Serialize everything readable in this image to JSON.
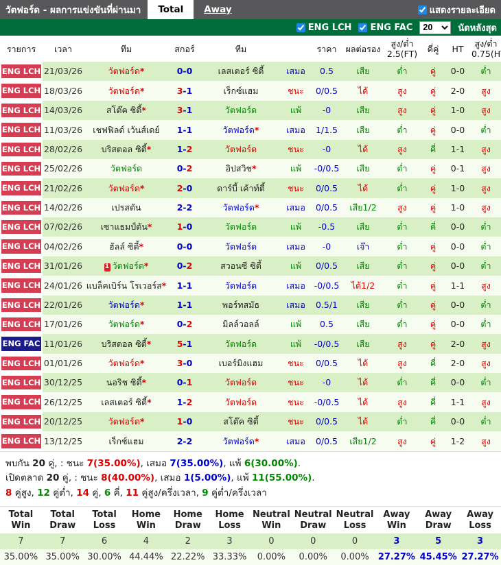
{
  "titlebar": {
    "title": "วัตฟอร์ด - ผลการแข่งขันที่ผ่านมา",
    "tabs": [
      {
        "label": "Total",
        "active": true
      },
      {
        "label": "Away",
        "active": false
      }
    ],
    "detail_checkbox_label": "แสดงรายละเอียด",
    "detail_checkbox_checked": true
  },
  "filterbar": {
    "leagues": [
      {
        "label": "ENG LCH",
        "checked": true
      },
      {
        "label": "ENG FAC",
        "checked": true
      }
    ],
    "match_count": "20",
    "suffix_label": "นัดหลังสุด"
  },
  "colors": {
    "red": "#dd0000",
    "blue": "#0000cc",
    "green": "#008800",
    "black": "#222222",
    "badge_lch": "#d43d52",
    "badge_fac": "#1a1c8e",
    "row_green": "#d9efc6",
    "row_pale": "#f7fcf0",
    "bar_gray": "#58585a",
    "bar_green": "#006e3a"
  },
  "table": {
    "headers": [
      "รายการ",
      "เวลา",
      "ทีม",
      "สกอร์",
      "ทีม",
      "",
      "ราคา",
      "ผลต่อรอง",
      "สูง/ต่ำ 2.5(FT)",
      "คี่คู่",
      "HT",
      "สูง/ต่ำ 0.75(HT)"
    ],
    "rows": [
      {
        "league": "ENG LCH",
        "league_style": "lch",
        "date": "21/03/26",
        "home": "วัตฟอร์ด",
        "home_star": true,
        "home_color": "red",
        "red_card": "",
        "away": "เลสเตอร์ ซิตี้",
        "away_star": false,
        "away_color": "black",
        "score_home": "0",
        "score_away": "0",
        "score_home_color": "blue",
        "score_away_color": "blue",
        "result": "เสมอ",
        "result_color": "blue",
        "ratio": "0.5",
        "handicap": "เสีย",
        "handicap_color": "green",
        "ou_ft": "ต่ำ",
        "ou_ft_color": "green",
        "odd_even": "คู่",
        "odd_even_color": "red",
        "ht": "0-0",
        "ou_ht": "ต่ำ",
        "ou_ht_color": "green"
      },
      {
        "league": "ENG LCH",
        "league_style": "lch",
        "date": "18/03/26",
        "home": "วัตฟอร์ด",
        "home_star": true,
        "home_color": "red",
        "red_card": "",
        "away": "เร็กซ์แฮม",
        "away_star": false,
        "away_color": "black",
        "score_home": "3",
        "score_away": "1",
        "score_home_color": "red",
        "score_away_color": "blue",
        "result": "ชนะ",
        "result_color": "red",
        "ratio": "0/0.5",
        "handicap": "ได้",
        "handicap_color": "red",
        "ou_ft": "สูง",
        "ou_ft_color": "red",
        "odd_even": "คู่",
        "odd_even_color": "red",
        "ht": "2-0",
        "ou_ht": "สูง",
        "ou_ht_color": "red"
      },
      {
        "league": "ENG LCH",
        "league_style": "lch",
        "date": "14/03/26",
        "home": "สโต๊ค ซิตี้",
        "home_star": true,
        "home_color": "black",
        "red_card": "",
        "away": "วัตฟอร์ด",
        "away_star": false,
        "away_color": "green",
        "score_home": "3",
        "score_away": "1",
        "score_home_color": "red",
        "score_away_color": "blue",
        "result": "แพ้",
        "result_color": "green",
        "ratio": "-0",
        "handicap": "เสีย",
        "handicap_color": "green",
        "ou_ft": "สูง",
        "ou_ft_color": "red",
        "odd_even": "คู่",
        "odd_even_color": "red",
        "ht": "1-0",
        "ou_ht": "สูง",
        "ou_ht_color": "red"
      },
      {
        "league": "ENG LCH",
        "league_style": "lch",
        "date": "11/03/26",
        "home": "เชฟฟิลด์ เว้นส์เดย์",
        "home_star": false,
        "home_color": "black",
        "red_card": "",
        "away": "วัตฟอร์ด",
        "away_star": true,
        "away_color": "blue",
        "score_home": "1",
        "score_away": "1",
        "score_home_color": "blue",
        "score_away_color": "blue",
        "result": "เสมอ",
        "result_color": "blue",
        "ratio": "1/1.5",
        "handicap": "เสีย",
        "handicap_color": "green",
        "ou_ft": "ต่ำ",
        "ou_ft_color": "green",
        "odd_even": "คู่",
        "odd_even_color": "red",
        "ht": "0-0",
        "ou_ht": "ต่ำ",
        "ou_ht_color": "green"
      },
      {
        "league": "ENG LCH",
        "league_style": "lch",
        "date": "28/02/26",
        "home": "บริสตอล ซิตี้",
        "home_star": true,
        "home_color": "black",
        "red_card": "",
        "away": "วัตฟอร์ด",
        "away_star": false,
        "away_color": "red",
        "score_home": "1",
        "score_away": "2",
        "score_home_color": "blue",
        "score_away_color": "red",
        "result": "ชนะ",
        "result_color": "red",
        "ratio": "-0",
        "handicap": "ได้",
        "handicap_color": "red",
        "ou_ft": "สูง",
        "ou_ft_color": "red",
        "odd_even": "คี่",
        "odd_even_color": "green",
        "ht": "1-1",
        "ou_ht": "สูง",
        "ou_ht_color": "red"
      },
      {
        "league": "ENG LCH",
        "league_style": "lch",
        "date": "25/02/26",
        "home": "วัตฟอร์ด",
        "home_star": false,
        "home_color": "green",
        "red_card": "",
        "away": "อิปสวิช",
        "away_star": true,
        "away_color": "black",
        "score_home": "0",
        "score_away": "2",
        "score_home_color": "blue",
        "score_away_color": "red",
        "result": "แพ้",
        "result_color": "green",
        "ratio": "-0/0.5",
        "handicap": "เสีย",
        "handicap_color": "green",
        "ou_ft": "ต่ำ",
        "ou_ft_color": "green",
        "odd_even": "คู่",
        "odd_even_color": "red",
        "ht": "0-1",
        "ou_ht": "สูง",
        "ou_ht_color": "red"
      },
      {
        "league": "ENG LCH",
        "league_style": "lch",
        "date": "21/02/26",
        "home": "วัตฟอร์ด",
        "home_star": true,
        "home_color": "red",
        "red_card": "",
        "away": "ดาร์บี้ เค้าท์ตี้",
        "away_star": false,
        "away_color": "black",
        "score_home": "2",
        "score_away": "0",
        "score_home_color": "red",
        "score_away_color": "blue",
        "result": "ชนะ",
        "result_color": "red",
        "ratio": "0/0.5",
        "handicap": "ได้",
        "handicap_color": "red",
        "ou_ft": "ต่ำ",
        "ou_ft_color": "green",
        "odd_even": "คู่",
        "odd_even_color": "red",
        "ht": "1-0",
        "ou_ht": "สูง",
        "ou_ht_color": "red"
      },
      {
        "league": "ENG LCH",
        "league_style": "lch",
        "date": "14/02/26",
        "home": "เปรสตัน",
        "home_star": false,
        "home_color": "black",
        "red_card": "",
        "away": "วัตฟอร์ด",
        "away_star": true,
        "away_color": "blue",
        "score_home": "2",
        "score_away": "2",
        "score_home_color": "blue",
        "score_away_color": "blue",
        "result": "เสมอ",
        "result_color": "blue",
        "ratio": "0/0.5",
        "handicap": "เสีย1/2",
        "handicap_color": "green",
        "ou_ft": "สูง",
        "ou_ft_color": "red",
        "odd_even": "คู่",
        "odd_even_color": "red",
        "ht": "1-0",
        "ou_ht": "สูง",
        "ou_ht_color": "red"
      },
      {
        "league": "ENG LCH",
        "league_style": "lch",
        "date": "07/02/26",
        "home": "เซาแธมป์ตัน",
        "home_star": true,
        "home_color": "black",
        "red_card": "",
        "away": "วัตฟอร์ด",
        "away_star": false,
        "away_color": "green",
        "score_home": "1",
        "score_away": "0",
        "score_home_color": "red",
        "score_away_color": "blue",
        "result": "แพ้",
        "result_color": "green",
        "ratio": "-0.5",
        "handicap": "เสีย",
        "handicap_color": "green",
        "ou_ft": "ต่ำ",
        "ou_ft_color": "green",
        "odd_even": "คี่",
        "odd_even_color": "green",
        "ht": "0-0",
        "ou_ht": "ต่ำ",
        "ou_ht_color": "green"
      },
      {
        "league": "ENG LCH",
        "league_style": "lch",
        "date": "04/02/26",
        "home": "ฮัลล์ ซิตี้",
        "home_star": true,
        "home_color": "black",
        "red_card": "",
        "away": "วัตฟอร์ด",
        "away_star": false,
        "away_color": "blue",
        "score_home": "0",
        "score_away": "0",
        "score_home_color": "blue",
        "score_away_color": "blue",
        "result": "เสมอ",
        "result_color": "blue",
        "ratio": "-0",
        "handicap": "เจ๊า",
        "handicap_color": "blue",
        "ou_ft": "ต่ำ",
        "ou_ft_color": "green",
        "odd_even": "คู่",
        "odd_even_color": "red",
        "ht": "0-0",
        "ou_ht": "ต่ำ",
        "ou_ht_color": "green"
      },
      {
        "league": "ENG LCH",
        "league_style": "lch",
        "date": "31/01/26",
        "home": "วัตฟอร์ด",
        "home_star": true,
        "home_color": "green",
        "red_card": "1",
        "away": "สวอนซี ซิตี้",
        "away_star": false,
        "away_color": "black",
        "score_home": "0",
        "score_away": "2",
        "score_home_color": "blue",
        "score_away_color": "red",
        "result": "แพ้",
        "result_color": "green",
        "ratio": "0/0.5",
        "handicap": "เสีย",
        "handicap_color": "green",
        "ou_ft": "ต่ำ",
        "ou_ft_color": "green",
        "odd_even": "คู่",
        "odd_even_color": "red",
        "ht": "0-0",
        "ou_ht": "ต่ำ",
        "ou_ht_color": "green"
      },
      {
        "league": "ENG LCH",
        "league_style": "lch",
        "date": "24/01/26",
        "home": "แบล็คเบิร์น โรเวอร์ส",
        "home_star": true,
        "home_color": "black",
        "red_card": "",
        "away": "วัตฟอร์ด",
        "away_star": false,
        "away_color": "blue",
        "score_home": "1",
        "score_away": "1",
        "score_home_color": "blue",
        "score_away_color": "blue",
        "result": "เสมอ",
        "result_color": "blue",
        "ratio": "-0/0.5",
        "handicap": "ได้1/2",
        "handicap_color": "red",
        "ou_ft": "ต่ำ",
        "ou_ft_color": "green",
        "odd_even": "คู่",
        "odd_even_color": "red",
        "ht": "1-1",
        "ou_ht": "สูง",
        "ou_ht_color": "red"
      },
      {
        "league": "ENG LCH",
        "league_style": "lch",
        "date": "22/01/26",
        "home": "วัตฟอร์ด",
        "home_star": true,
        "home_color": "blue",
        "red_card": "",
        "away": "พอร์ทสมัธ",
        "away_star": false,
        "away_color": "black",
        "score_home": "1",
        "score_away": "1",
        "score_home_color": "blue",
        "score_away_color": "blue",
        "result": "เสมอ",
        "result_color": "blue",
        "ratio": "0.5/1",
        "handicap": "เสีย",
        "handicap_color": "green",
        "ou_ft": "ต่ำ",
        "ou_ft_color": "green",
        "odd_even": "คู่",
        "odd_even_color": "red",
        "ht": "0-0",
        "ou_ht": "ต่ำ",
        "ou_ht_color": "green"
      },
      {
        "league": "ENG LCH",
        "league_style": "lch",
        "date": "17/01/26",
        "home": "วัตฟอร์ด",
        "home_star": true,
        "home_color": "green",
        "red_card": "",
        "away": "มิลล์วอลล์",
        "away_star": false,
        "away_color": "black",
        "score_home": "0",
        "score_away": "2",
        "score_home_color": "blue",
        "score_away_color": "red",
        "result": "แพ้",
        "result_color": "green",
        "ratio": "0.5",
        "handicap": "เสีย",
        "handicap_color": "green",
        "ou_ft": "ต่ำ",
        "ou_ft_color": "green",
        "odd_even": "คู่",
        "odd_even_color": "red",
        "ht": "0-0",
        "ou_ht": "ต่ำ",
        "ou_ht_color": "green"
      },
      {
        "league": "ENG FAC",
        "league_style": "fac",
        "date": "11/01/26",
        "home": "บริสตอล ซิตี้",
        "home_star": true,
        "home_color": "black",
        "red_card": "",
        "away": "วัตฟอร์ด",
        "away_star": false,
        "away_color": "green",
        "score_home": "5",
        "score_away": "1",
        "score_home_color": "red",
        "score_away_color": "blue",
        "result": "แพ้",
        "result_color": "green",
        "ratio": "-0/0.5",
        "handicap": "เสีย",
        "handicap_color": "green",
        "ou_ft": "สูง",
        "ou_ft_color": "red",
        "odd_even": "คู่",
        "odd_even_color": "red",
        "ht": "2-0",
        "ou_ht": "สูง",
        "ou_ht_color": "red"
      },
      {
        "league": "ENG LCH",
        "league_style": "lch",
        "date": "01/01/26",
        "home": "วัตฟอร์ด",
        "home_star": true,
        "home_color": "red",
        "red_card": "",
        "away": "เบอร์มิงแฮม",
        "away_star": false,
        "away_color": "black",
        "score_home": "3",
        "score_away": "0",
        "score_home_color": "red",
        "score_away_color": "blue",
        "result": "ชนะ",
        "result_color": "red",
        "ratio": "0/0.5",
        "handicap": "ได้",
        "handicap_color": "red",
        "ou_ft": "สูง",
        "ou_ft_color": "red",
        "odd_even": "คี่",
        "odd_even_color": "green",
        "ht": "2-0",
        "ou_ht": "สูง",
        "ou_ht_color": "red"
      },
      {
        "league": "ENG LCH",
        "league_style": "lch",
        "date": "30/12/25",
        "home": "นอริช ซิตี้",
        "home_star": true,
        "home_color": "black",
        "red_card": "",
        "away": "วัตฟอร์ด",
        "away_star": false,
        "away_color": "red",
        "score_home": "0",
        "score_away": "1",
        "score_home_color": "blue",
        "score_away_color": "red",
        "result": "ชนะ",
        "result_color": "red",
        "ratio": "-0",
        "handicap": "ได้",
        "handicap_color": "red",
        "ou_ft": "ต่ำ",
        "ou_ft_color": "green",
        "odd_even": "คี่",
        "odd_even_color": "green",
        "ht": "0-0",
        "ou_ht": "ต่ำ",
        "ou_ht_color": "green"
      },
      {
        "league": "ENG LCH",
        "league_style": "lch",
        "date": "26/12/25",
        "home": "เลสเตอร์ ซิตี้",
        "home_star": true,
        "home_color": "black",
        "red_card": "",
        "away": "วัตฟอร์ด",
        "away_star": false,
        "away_color": "red",
        "score_home": "1",
        "score_away": "2",
        "score_home_color": "blue",
        "score_away_color": "red",
        "result": "ชนะ",
        "result_color": "red",
        "ratio": "-0/0.5",
        "handicap": "ได้",
        "handicap_color": "red",
        "ou_ft": "สูง",
        "ou_ft_color": "red",
        "odd_even": "คี่",
        "odd_even_color": "green",
        "ht": "1-1",
        "ou_ht": "สูง",
        "ou_ht_color": "red"
      },
      {
        "league": "ENG LCH",
        "league_style": "lch",
        "date": "20/12/25",
        "home": "วัตฟอร์ด",
        "home_star": true,
        "home_color": "red",
        "red_card": "",
        "away": "สโต๊ค ซิตี้",
        "away_star": false,
        "away_color": "black",
        "score_home": "1",
        "score_away": "0",
        "score_home_color": "red",
        "score_away_color": "blue",
        "result": "ชนะ",
        "result_color": "red",
        "ratio": "0/0.5",
        "handicap": "ได้",
        "handicap_color": "red",
        "ou_ft": "ต่ำ",
        "ou_ft_color": "green",
        "odd_even": "คี่",
        "odd_even_color": "green",
        "ht": "0-0",
        "ou_ht": "ต่ำ",
        "ou_ht_color": "green"
      },
      {
        "league": "ENG LCH",
        "league_style": "lch",
        "date": "13/12/25",
        "home": "เร็กซ์แฮม",
        "home_star": false,
        "home_color": "black",
        "red_card": "",
        "away": "วัตฟอร์ด",
        "away_star": true,
        "away_color": "blue",
        "score_home": "2",
        "score_away": "2",
        "score_home_color": "blue",
        "score_away_color": "blue",
        "result": "เสมอ",
        "result_color": "blue",
        "ratio": "0/0.5",
        "handicap": "เสีย1/2",
        "handicap_color": "green",
        "ou_ft": "สูง",
        "ou_ft_color": "red",
        "odd_even": "คู่",
        "odd_even_color": "red",
        "ht": "1-2",
        "ou_ht": "สูง",
        "ou_ht_color": "red"
      }
    ]
  },
  "summary": {
    "lines": [
      [
        {
          "t": "พบกัน ",
          "c": "black",
          "b": false
        },
        {
          "t": "20",
          "c": "black",
          "b": true
        },
        {
          "t": " คู่, : ชนะ ",
          "c": "black",
          "b": false
        },
        {
          "t": "7(35.00%)",
          "c": "red",
          "b": true
        },
        {
          "t": ", เสมอ ",
          "c": "black",
          "b": false
        },
        {
          "t": "7(35.00%)",
          "c": "blue",
          "b": true
        },
        {
          "t": ", แพ้ ",
          "c": "black",
          "b": false
        },
        {
          "t": "6(30.00%)",
          "c": "green",
          "b": true
        },
        {
          "t": ".",
          "c": "black",
          "b": false
        }
      ],
      [
        {
          "t": "เปิดตลาด ",
          "c": "black",
          "b": false
        },
        {
          "t": "20",
          "c": "black",
          "b": true
        },
        {
          "t": " คู่, : ชนะ ",
          "c": "black",
          "b": false
        },
        {
          "t": "8(40.00%)",
          "c": "red",
          "b": true
        },
        {
          "t": ", เสมอ ",
          "c": "black",
          "b": false
        },
        {
          "t": "1(5.00%)",
          "c": "blue",
          "b": true
        },
        {
          "t": ", แพ้ ",
          "c": "black",
          "b": false
        },
        {
          "t": "11(55.00%)",
          "c": "green",
          "b": true
        },
        {
          "t": ".",
          "c": "black",
          "b": false
        }
      ],
      [
        {
          "t": "8",
          "c": "red",
          "b": true
        },
        {
          "t": " คู่สูง, ",
          "c": "black",
          "b": false
        },
        {
          "t": "12",
          "c": "green",
          "b": true
        },
        {
          "t": " คู่ต่ำ, ",
          "c": "black",
          "b": false
        },
        {
          "t": "14",
          "c": "red",
          "b": true
        },
        {
          "t": " คู่, ",
          "c": "black",
          "b": false
        },
        {
          "t": "6",
          "c": "green",
          "b": true
        },
        {
          "t": " คี่, ",
          "c": "black",
          "b": false
        },
        {
          "t": "11",
          "c": "red",
          "b": true
        },
        {
          "t": " คู่สูง/ครึ่งเวลา, ",
          "c": "black",
          "b": false
        },
        {
          "t": "9",
          "c": "green",
          "b": true
        },
        {
          "t": " คู่ต่ำ/ครึ่งเวลา",
          "c": "black",
          "b": false
        }
      ]
    ]
  },
  "stats": {
    "headers": [
      "Total Win",
      "Total Draw",
      "Total Loss",
      "Home Win",
      "Home Draw",
      "Home Loss",
      "Neutral Win",
      "Neutral Draw",
      "Neutral Loss",
      "Away Win",
      "Away Draw",
      "Away Loss"
    ],
    "counts": [
      "7",
      "7",
      "6",
      "4",
      "2",
      "3",
      "0",
      "0",
      "0",
      "3",
      "5",
      "3"
    ],
    "percents": [
      "35.00%",
      "35.00%",
      "30.00%",
      "44.44%",
      "22.22%",
      "33.33%",
      "0.00%",
      "0.00%",
      "0.00%",
      "27.27%",
      "45.45%",
      "27.27%"
    ],
    "away_columns_start": 9
  }
}
